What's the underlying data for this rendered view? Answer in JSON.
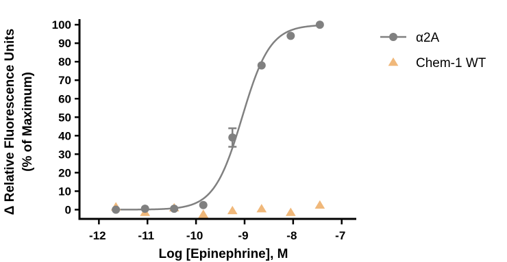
{
  "chart_data": {
    "type": "scatter",
    "title": "",
    "xlabel": "Log [Epinephrine],  M",
    "ylabel_lines": [
      "Δ Relative Fluorescence Units",
      "(% of Maximum)"
    ],
    "xlim": [
      -12.4,
      -6.7
    ],
    "ylim": [
      -5,
      103
    ],
    "xticks": [
      -12,
      -11,
      -10,
      -9,
      -8,
      -7
    ],
    "yticks": [
      0,
      10,
      20,
      30,
      40,
      50,
      60,
      70,
      80,
      90,
      100
    ],
    "grid": false,
    "legend_position": "top-right",
    "series": [
      {
        "name": "α2A",
        "marker": "circle",
        "color": "#808080",
        "x": [
          -11.65,
          -11.05,
          -10.45,
          -9.85,
          -9.25,
          -8.65,
          -8.05,
          -7.45
        ],
        "y": [
          0,
          0.5,
          0.5,
          2.5,
          39,
          78,
          94,
          100
        ],
        "error": [
          0,
          0,
          0,
          0,
          5,
          0,
          0,
          0
        ],
        "fit": {
          "bottom": 0,
          "top": 100,
          "log_ec50": -9.05,
          "hill": 1.5
        }
      },
      {
        "name": "Chem-1 WT",
        "marker": "triangle",
        "color": "#f0b87a",
        "x": [
          -11.65,
          -11.05,
          -10.45,
          -9.85,
          -9.25,
          -8.65,
          -8.05,
          -7.45
        ],
        "y": [
          1.5,
          -1.5,
          1,
          -2.5,
          -0.5,
          0.5,
          -1.5,
          2.5
        ]
      }
    ]
  }
}
